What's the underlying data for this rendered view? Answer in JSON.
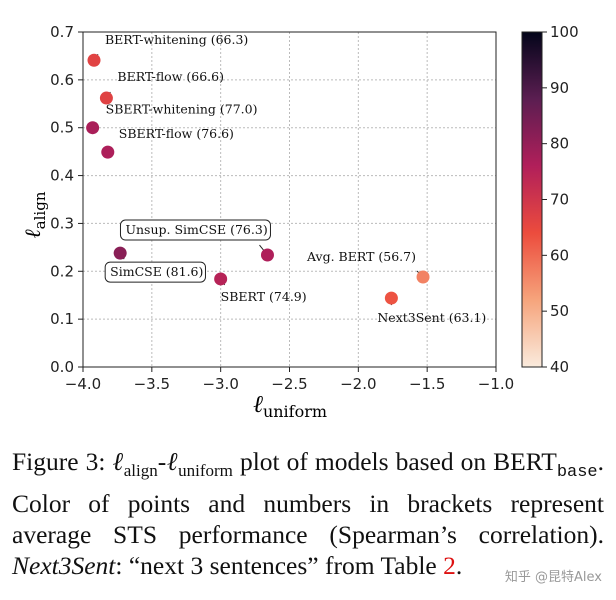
{
  "chart_data": {
    "type": "scatter",
    "xlabel": "ℓuniform",
    "ylabel": "ℓalign",
    "xlim": [
      -4.0,
      -1.0
    ],
    "ylim": [
      0.0,
      0.7
    ],
    "xticks": [
      "−4.0",
      "−3.5",
      "−3.0",
      "−2.5",
      "−2.0",
      "−1.5",
      "−1.0"
    ],
    "yticks": [
      "0.0",
      "0.1",
      "0.2",
      "0.3",
      "0.4",
      "0.5",
      "0.6",
      "0.7"
    ],
    "grid": true,
    "colorbar": {
      "range": [
        40,
        100
      ],
      "ticks": [
        "40",
        "50",
        "60",
        "70",
        "80",
        "90",
        "100"
      ],
      "colormap": "rocket_r"
    },
    "points": [
      {
        "label": "BERT-whitening (66.3)",
        "x": -3.92,
        "y": 0.641,
        "score": 66.3
      },
      {
        "label": "BERT-flow (66.6)",
        "x": -3.83,
        "y": 0.562,
        "score": 66.6
      },
      {
        "label": "SBERT-whitening (77.0)",
        "x": -3.93,
        "y": 0.5,
        "score": 77.0
      },
      {
        "label": "SBERT-flow (76.6)",
        "x": -3.82,
        "y": 0.449,
        "score": 76.6
      },
      {
        "label": "SimCSE (81.6)",
        "x": -3.73,
        "y": 0.238,
        "score": 81.6,
        "boxed": true
      },
      {
        "label": "Unsup. SimCSE (76.3)",
        "x": -2.66,
        "y": 0.234,
        "score": 76.3,
        "boxed": true
      },
      {
        "label": "SBERT (74.9)",
        "x": -3.0,
        "y": 0.184,
        "score": 74.9
      },
      {
        "label": "Avg. BERT (56.7)",
        "x": -1.53,
        "y": 0.188,
        "score": 56.7
      },
      {
        "label": "Next3Sent (63.1)",
        "x": -1.76,
        "y": 0.144,
        "score": 63.1
      }
    ]
  },
  "caption": {
    "prefix": "Figure 3: ",
    "body1": " plot of models based on BERT",
    "base": "base",
    "body2": ". Color of points and numbers in brackets represent average STS performance (Spearman’s correlation). ",
    "italic": "Next3Sent",
    "body3": ": “next 3 sentences” from Table ",
    "ref": "2",
    "end": ".",
    "ell_align": "ℓ",
    "align": "align",
    "ell_uniform": "ℓ",
    "uniform": "uniform",
    "dash": "-"
  },
  "watermark": "知乎 @昆特Alex"
}
